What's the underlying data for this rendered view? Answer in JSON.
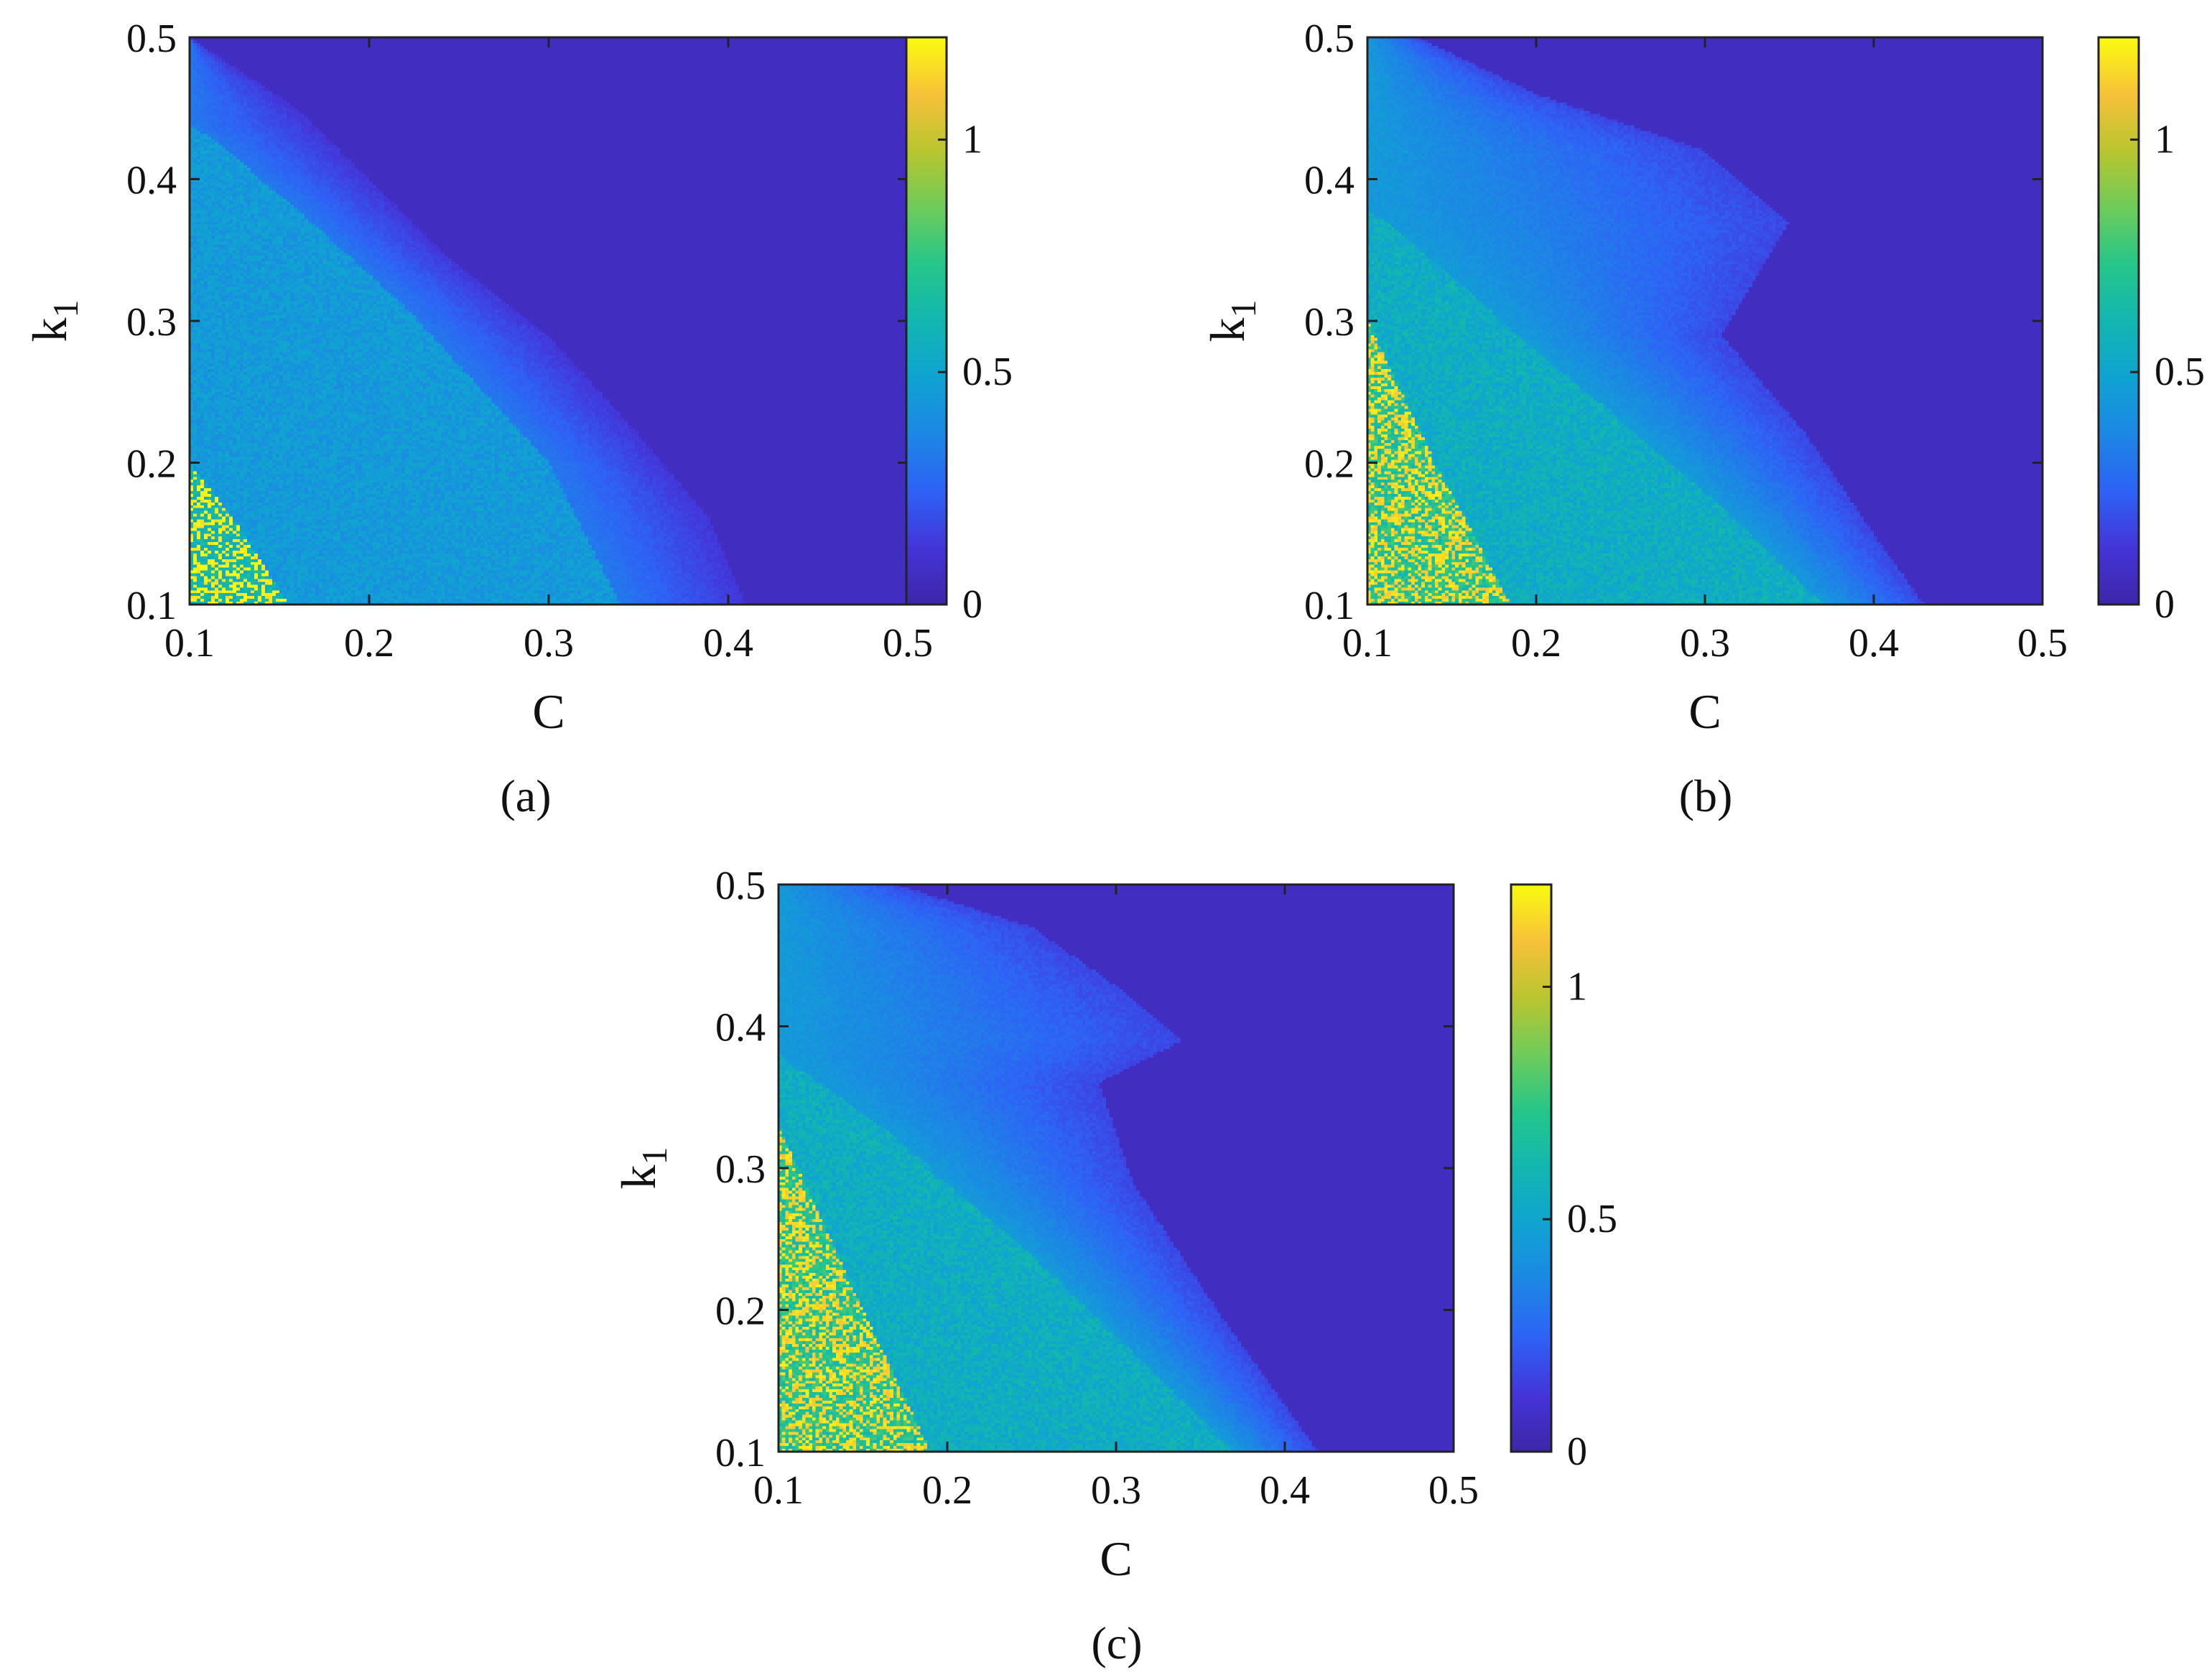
{
  "chart_data": [
    {
      "type": "heatmap",
      "caption": "(a)",
      "xlabel": "C",
      "ylabel": "k",
      "ylabel_subscript": "1",
      "xlim": [
        0.1,
        0.5
      ],
      "ylim": [
        0.1,
        0.5
      ],
      "xticks": [
        "0.1",
        "0.2",
        "0.3",
        "0.4",
        "0.5"
      ],
      "yticks": [
        "0.1",
        "0.2",
        "0.3",
        "0.4",
        "0.5"
      ],
      "colorbar": {
        "range": [
          0,
          1.22
        ],
        "ticks": [
          "0",
          "0.5",
          "1"
        ],
        "tick_values": [
          0,
          0.5,
          1
        ]
      },
      "regions": {
        "zero_boundary": [
          [
            0.1,
            0.5
          ],
          [
            0.16,
            0.45
          ],
          [
            0.2,
            0.4
          ],
          [
            0.24,
            0.35
          ],
          [
            0.3,
            0.29
          ],
          [
            0.35,
            0.22
          ],
          [
            0.39,
            0.16
          ],
          [
            0.41,
            0.1
          ]
        ],
        "mid_boundary": [
          [
            0.1,
            0.44
          ],
          [
            0.15,
            0.39
          ],
          [
            0.22,
            0.31
          ],
          [
            0.3,
            0.2
          ],
          [
            0.34,
            0.1
          ]
        ],
        "high_boundary": [
          [
            0.1,
            0.2
          ],
          [
            0.13,
            0.15
          ],
          [
            0.155,
            0.1
          ]
        ],
        "level_low": 0.12,
        "level_mid": 0.32,
        "level_high": 0.45,
        "level_peak": 1.2,
        "noise": 0.08
      }
    },
    {
      "type": "heatmap",
      "caption": "(b)",
      "xlabel": "C",
      "ylabel": "k",
      "ylabel_subscript": "1",
      "xlim": [
        0.1,
        0.5
      ],
      "ylim": [
        0.1,
        0.5
      ],
      "xticks": [
        "0.1",
        "0.2",
        "0.3",
        "0.4",
        "0.5"
      ],
      "yticks": [
        "0.1",
        "0.2",
        "0.3",
        "0.4",
        "0.5"
      ],
      "colorbar": {
        "range": [
          0,
          1.22
        ],
        "ticks": [
          "0",
          "0.5",
          "1"
        ],
        "tick_values": [
          0,
          0.5,
          1
        ]
      },
      "regions": {
        "zero_boundary": [
          [
            0.13,
            0.5
          ],
          [
            0.2,
            0.46
          ],
          [
            0.3,
            0.42
          ],
          [
            0.35,
            0.37
          ],
          [
            0.31,
            0.29
          ],
          [
            0.36,
            0.22
          ],
          [
            0.4,
            0.15
          ],
          [
            0.43,
            0.1
          ]
        ],
        "mid_boundary": [
          [
            0.1,
            0.38
          ],
          [
            0.15,
            0.33
          ],
          [
            0.22,
            0.26
          ],
          [
            0.3,
            0.18
          ],
          [
            0.37,
            0.1
          ]
        ],
        "high_boundary": [
          [
            0.1,
            0.3
          ],
          [
            0.14,
            0.2
          ],
          [
            0.185,
            0.1
          ]
        ],
        "level_low": 0.17,
        "level_mid": 0.45,
        "level_high": 0.55,
        "level_peak": 1.15,
        "noise": 0.1
      }
    },
    {
      "type": "heatmap",
      "caption": "(c)",
      "xlabel": "C",
      "ylabel": "k",
      "ylabel_subscript": "1",
      "xlim": [
        0.1,
        0.5
      ],
      "ylim": [
        0.1,
        0.5
      ],
      "xticks": [
        "0.1",
        "0.2",
        "0.3",
        "0.4",
        "0.5"
      ],
      "yticks": [
        "0.1",
        "0.2",
        "0.3",
        "0.4",
        "0.5"
      ],
      "colorbar": {
        "range": [
          0,
          1.22
        ],
        "ticks": [
          "0",
          "0.5",
          "1"
        ],
        "tick_values": [
          0,
          0.5,
          1
        ]
      },
      "regions": {
        "zero_boundary": [
          [
            0.17,
            0.5
          ],
          [
            0.25,
            0.47
          ],
          [
            0.31,
            0.42
          ],
          [
            0.34,
            0.39
          ],
          [
            0.29,
            0.36
          ],
          [
            0.31,
            0.29
          ],
          [
            0.36,
            0.2
          ],
          [
            0.42,
            0.1
          ]
        ],
        "mid_boundary": [
          [
            0.1,
            0.38
          ],
          [
            0.16,
            0.33
          ],
          [
            0.24,
            0.25
          ],
          [
            0.31,
            0.17
          ],
          [
            0.37,
            0.1
          ]
        ],
        "high_boundary": [
          [
            0.1,
            0.33
          ],
          [
            0.15,
            0.2
          ],
          [
            0.19,
            0.1
          ]
        ],
        "level_low": 0.17,
        "level_mid": 0.45,
        "level_high": 0.55,
        "level_peak": 1.15,
        "noise": 0.1
      }
    }
  ]
}
